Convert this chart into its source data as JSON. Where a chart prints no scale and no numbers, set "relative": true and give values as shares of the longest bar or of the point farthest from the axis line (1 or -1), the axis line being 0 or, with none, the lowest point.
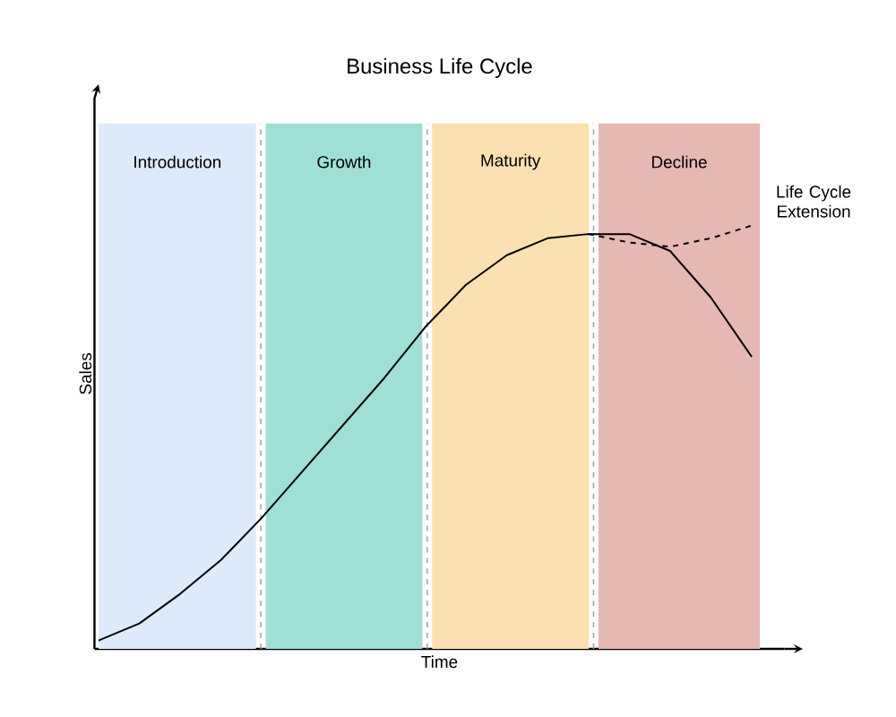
{
  "chart_data": {
    "type": "line",
    "title": "Business Life Cycle",
    "xlabel": "Time",
    "ylabel": "Sales",
    "relative": true,
    "tick_labels": false,
    "categories": [
      null,
      null,
      null,
      null,
      null,
      null,
      null,
      null,
      null,
      null,
      null,
      null,
      null,
      null,
      null,
      null,
      null
    ],
    "series": [
      {
        "color": "#000000",
        "line_style": "solid",
        "values": [
          0.02,
          0.06,
          0.13,
          0.21,
          0.31,
          0.42,
          0.53,
          0.64,
          0.76,
          0.86,
          0.93,
          0.97,
          0.98,
          0.98,
          0.94,
          0.83,
          0.69
        ]
      },
      {
        "name": "Life Cycle Extension",
        "color": "#000000",
        "line_style": "dashed",
        "values": [
          null,
          null,
          null,
          null,
          null,
          null,
          null,
          null,
          null,
          null,
          null,
          null,
          0.98,
          0.96,
          0.95,
          0.97,
          1.0
        ]
      }
    ],
    "annotations": [
      "Introduction",
      "Growth",
      "Maturity",
      "Decline"
    ]
  }
}
